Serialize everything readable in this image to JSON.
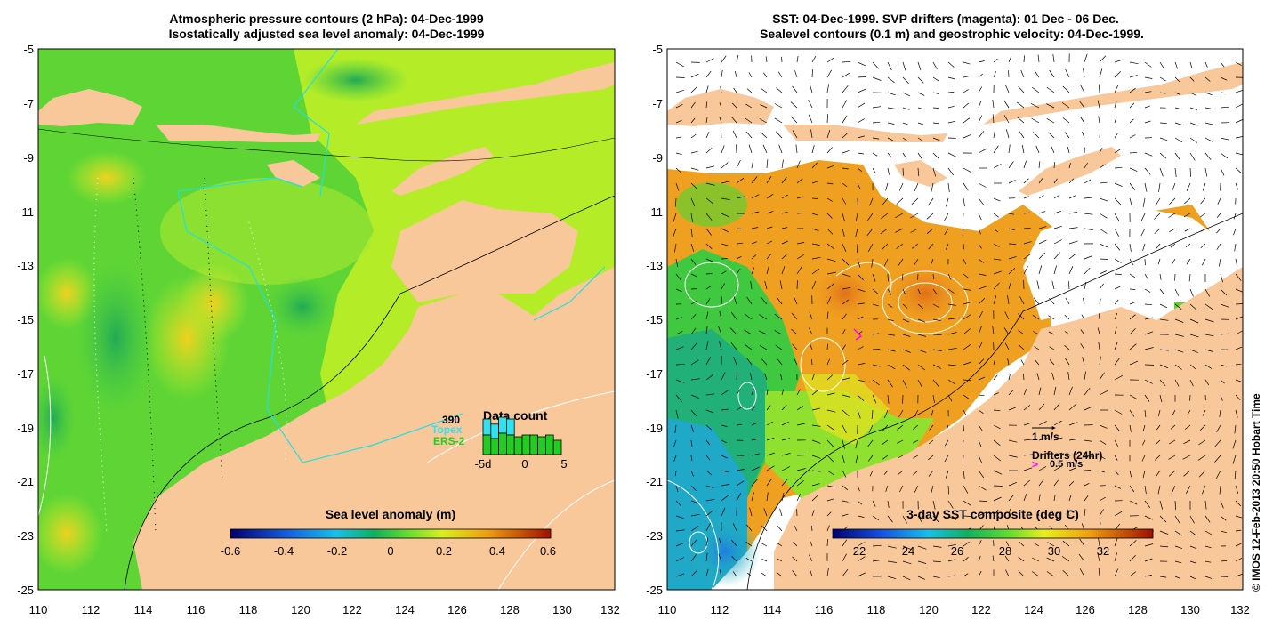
{
  "left_panel": {
    "title_line1": "Atmospheric pressure contours (2 hPa): 04-Dec-1999",
    "title_line2": "Isostatically adjusted sea level anomaly: 04-Dec-1999",
    "y_ticks": [
      "-5",
      "-7",
      "-9",
      "-11",
      "-13",
      "-15",
      "-17",
      "-19",
      "-21",
      "-23",
      "-25"
    ],
    "x_ticks": [
      "110",
      "112",
      "114",
      "116",
      "118",
      "120",
      "122",
      "124",
      "126",
      "128",
      "130",
      "132"
    ],
    "colorbar": {
      "title": "Sea level anomaly (m)",
      "ticks": [
        "-0.6",
        "-0.4",
        "-0.2",
        "0",
        "0.2",
        "0.4",
        "0.6"
      ]
    },
    "data_count": {
      "title": "Data count",
      "count": "390",
      "topex_label": "Topex",
      "ers_label": "ERS-2",
      "axis_labels": [
        "-5d",
        "0",
        "5"
      ],
      "topex_color": "#33e0f0",
      "ers_color": "#22cc22",
      "topex_bars": [
        1.0,
        0.9,
        1.0,
        1.0,
        0.0,
        0.0,
        0.0,
        0.0,
        0.0,
        0.0
      ],
      "ers_bars": [
        0.55,
        0.45,
        0.6,
        0.55,
        0.5,
        0.55,
        0.55,
        0.5,
        0.55,
        0.4
      ]
    }
  },
  "right_panel": {
    "title_line1": "SST: 04-Dec-1999. SVP drifters (magenta): 01 Dec - 06 Dec.",
    "title_line2": "Sealevel contours (0.1 m) and geostrophic velocity: 04-Dec-1999.",
    "y_ticks": [
      "-5",
      "-7",
      "-9",
      "-11",
      "-13",
      "-15",
      "-17",
      "-19",
      "-21",
      "-23",
      "-25"
    ],
    "x_ticks": [
      "110",
      "112",
      "114",
      "116",
      "118",
      "120",
      "122",
      "124",
      "126",
      "128",
      "130",
      "132"
    ],
    "colorbar": {
      "title": "3-day SST composite (deg C)",
      "ticks": [
        "22",
        "24",
        "26",
        "28",
        "30",
        "32"
      ]
    },
    "velocity_legend": "1 m/s",
    "drifter_legend_title": "Drifters (24hr)",
    "drifter_legend_speed": "0.5 m/s",
    "drifter_color": "#ff00ff"
  },
  "credit": "© IMOS 12-Feb-2013 20:50 Hobart Time",
  "colors": {
    "land": "#f8c79a",
    "sea_green": "#66dd33",
    "sea_yellow": "#c8f028",
    "warm": "#f0a020"
  }
}
